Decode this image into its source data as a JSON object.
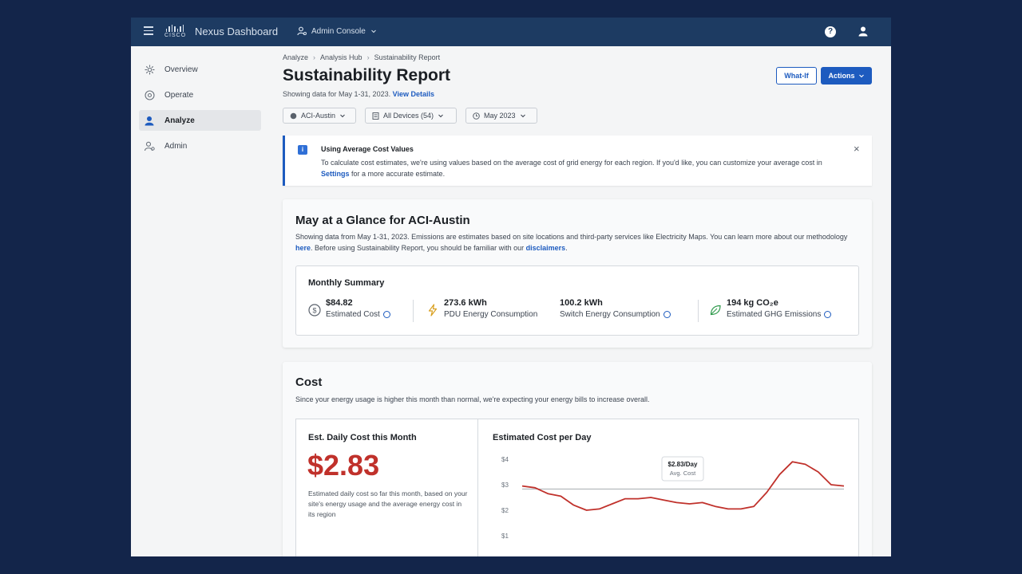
{
  "topbar": {
    "app_title": "Nexus Dashboard",
    "console_label": "Admin Console",
    "logo_text": "CISCO",
    "help_glyph": "?"
  },
  "sidebar": {
    "items": [
      {
        "label": "Overview",
        "icon": "overview-icon"
      },
      {
        "label": "Operate",
        "icon": "operate-icon"
      },
      {
        "label": "Analyze",
        "icon": "analyze-icon",
        "active": true
      },
      {
        "label": "Admin",
        "icon": "admin-icon"
      }
    ]
  },
  "breadcrumb": [
    "Analyze",
    "Analysis Hub",
    "Sustainability Report"
  ],
  "page": {
    "title": "Sustainability Report",
    "subtitle": "Showing data for May 1-31, 2023.",
    "subtitle_link": "View Details",
    "whatif_label": "What-If",
    "actions_label": "Actions"
  },
  "filters": [
    {
      "label": "ACI-Austin",
      "icon": "site-icon"
    },
    {
      "label": "All Devices (54)",
      "icon": "device-icon"
    },
    {
      "label": "May 2023",
      "icon": "clock-icon"
    }
  ],
  "banner": {
    "title": "Using Average Cost Values",
    "text_before": "To calculate cost estimates, we're using values based on the average cost of grid energy for each region. If you'd like, you can customize your average cost in ",
    "link": "Settings",
    "text_after": " for a more accurate estimate.",
    "close_glyph": "×",
    "info_glyph": "i"
  },
  "glance": {
    "title": "May at a Glance for ACI-Austin",
    "text_before": "Showing data from May 1-31, 2023. Emissions are estimates based on site locations and third-party services like Electricity Maps. You can learn more about our methodology ",
    "link1": "here",
    "text_middle": ". Before using Sustainability Report, you should be familiar with our ",
    "link2": "disclaimers",
    "text_after": ".",
    "summary_title": "Monthly Summary",
    "metrics": [
      {
        "value": "$84.82",
        "label": "Estimated Cost",
        "icon": "dollar-icon",
        "info": true
      },
      {
        "value": "273.6 kWh",
        "label": "PDU Energy Consumption",
        "icon": "lightning-icon",
        "info": false
      },
      {
        "value": "100.2 kWh",
        "label": "Switch Energy Consumption",
        "icon": "none",
        "info": true
      },
      {
        "value": "194 kg CO₂e",
        "label": "Estimated GHG Emissions",
        "icon": "leaf-icon",
        "info": true
      }
    ]
  },
  "cost": {
    "title": "Cost",
    "text": "Since your energy usage is higher this month than normal, we're expecting your energy bills to increase overall.",
    "daily_title": "Est. Daily Cost this Month",
    "daily_value": "$2.83",
    "daily_text": "Estimated daily cost so far this month, based on your site's energy usage and the average energy cost in its region",
    "chart_title": "Estimated Cost per Day"
  },
  "chart_data": {
    "type": "line",
    "title": "Estimated Cost per Day",
    "y_ticks": [
      "$4",
      "$3",
      "$2",
      "$1"
    ],
    "ylim": [
      1,
      4
    ],
    "series": [
      {
        "color": "#c0312b",
        "values": [
          2.95,
          2.88,
          2.65,
          2.55,
          2.2,
          2.0,
          2.05,
          2.25,
          2.45,
          2.45,
          2.5,
          2.4,
          2.3,
          2.25,
          2.3,
          2.15,
          2.05,
          2.05,
          2.15,
          2.7,
          3.4,
          3.9,
          3.8,
          3.5,
          3.0,
          2.95
        ]
      }
    ],
    "reference_line": {
      "value": 2.83,
      "label": "$2.83/Day",
      "sublabel": "Avg. Cost",
      "color": "#b0b4b9"
    }
  }
}
